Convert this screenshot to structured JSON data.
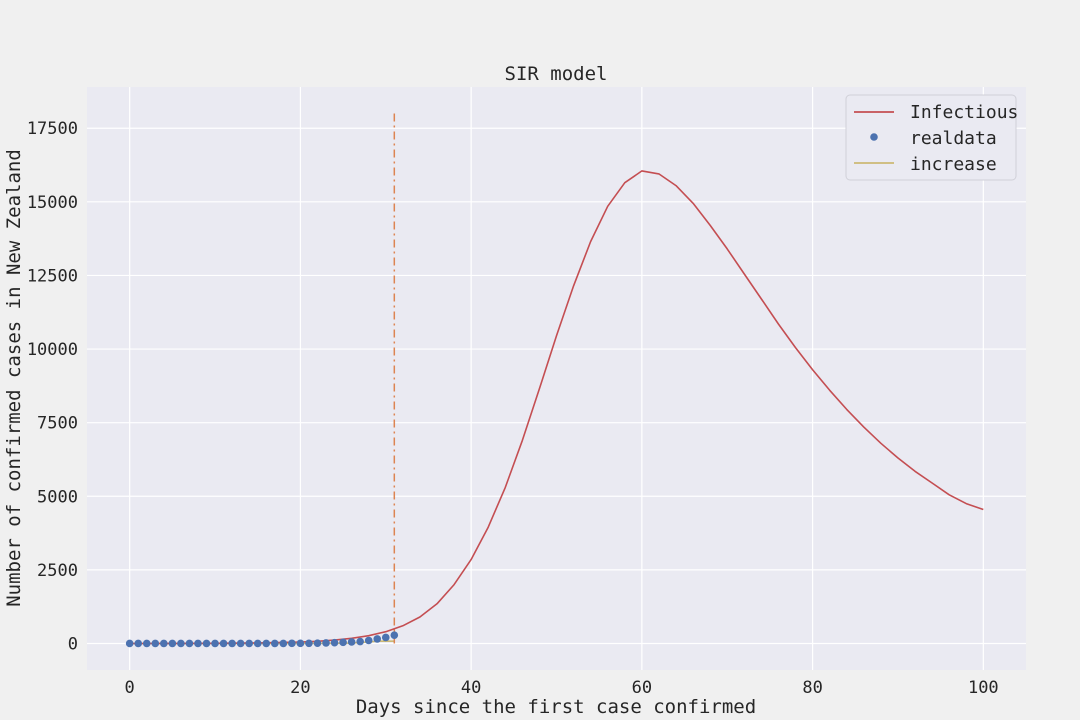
{
  "chart_data": {
    "type": "line",
    "title": "SIR model",
    "xlabel": "Days since the first case confirmed",
    "ylabel": "Number of confirmed cases in New Zealand",
    "xlim": [
      -5,
      105
    ],
    "ylim": [
      -900,
      18900
    ],
    "xticks": [
      0,
      20,
      40,
      60,
      80,
      100
    ],
    "yticks": [
      0,
      2500,
      5000,
      7500,
      10000,
      12500,
      15000,
      17500
    ],
    "grid": true,
    "legend_position": "top-right",
    "colors": {
      "background": "#f0f0f0",
      "plot_background": "#eaeaf2",
      "grid": "#ffffff",
      "infectious": "#c44e52",
      "realdata": "#4c72b0",
      "increase": "#ccb974",
      "vline": "#dd8452"
    },
    "series": [
      {
        "name": "Infectious",
        "kind": "line",
        "x": [
          0,
          5,
          10,
          15,
          20,
          22,
          24,
          26,
          28,
          30,
          32,
          34,
          36,
          38,
          40,
          42,
          44,
          46,
          48,
          50,
          52,
          54,
          56,
          58,
          60,
          62,
          64,
          66,
          68,
          70,
          72,
          74,
          76,
          78,
          80,
          82,
          84,
          86,
          88,
          90,
          92,
          94,
          96,
          98,
          100
        ],
        "y": [
          0,
          3,
          8,
          20,
          50,
          75,
          115,
          175,
          265,
          400,
          600,
          900,
          1350,
          2000,
          2850,
          3950,
          5300,
          6900,
          8650,
          10450,
          12150,
          13650,
          14850,
          15650,
          16050,
          15950,
          15550,
          14950,
          14200,
          13400,
          12550,
          11700,
          10850,
          10050,
          9300,
          8600,
          7950,
          7350,
          6800,
          6300,
          5850,
          5450,
          5050,
          4750,
          4550
        ]
      },
      {
        "name": "realdata",
        "kind": "scatter",
        "x": [
          0,
          1,
          2,
          3,
          4,
          5,
          6,
          7,
          8,
          9,
          10,
          11,
          12,
          13,
          14,
          15,
          16,
          17,
          18,
          19,
          20,
          21,
          22,
          23,
          24,
          25,
          26,
          27,
          28,
          29,
          30,
          31
        ],
        "y": [
          1,
          1,
          1,
          1,
          1,
          1,
          1,
          1,
          1,
          1,
          1,
          1,
          1,
          1,
          1,
          1,
          1,
          1,
          2,
          5,
          6,
          8,
          12,
          20,
          28,
          39,
          52,
          66,
          102,
          155,
          205,
          283
        ]
      },
      {
        "name": "increase",
        "kind": "line",
        "x": [
          0,
          5,
          10,
          15,
          18,
          20,
          22,
          24,
          25,
          26,
          27,
          28,
          29,
          30,
          31
        ],
        "y": [
          0,
          0,
          0,
          0,
          1,
          3,
          6,
          8,
          11,
          13,
          36,
          50,
          78,
          78,
          78
        ]
      }
    ],
    "vline": {
      "x": 31,
      "ymin": 0,
      "ymax": 18000,
      "style": "dashdot"
    }
  }
}
